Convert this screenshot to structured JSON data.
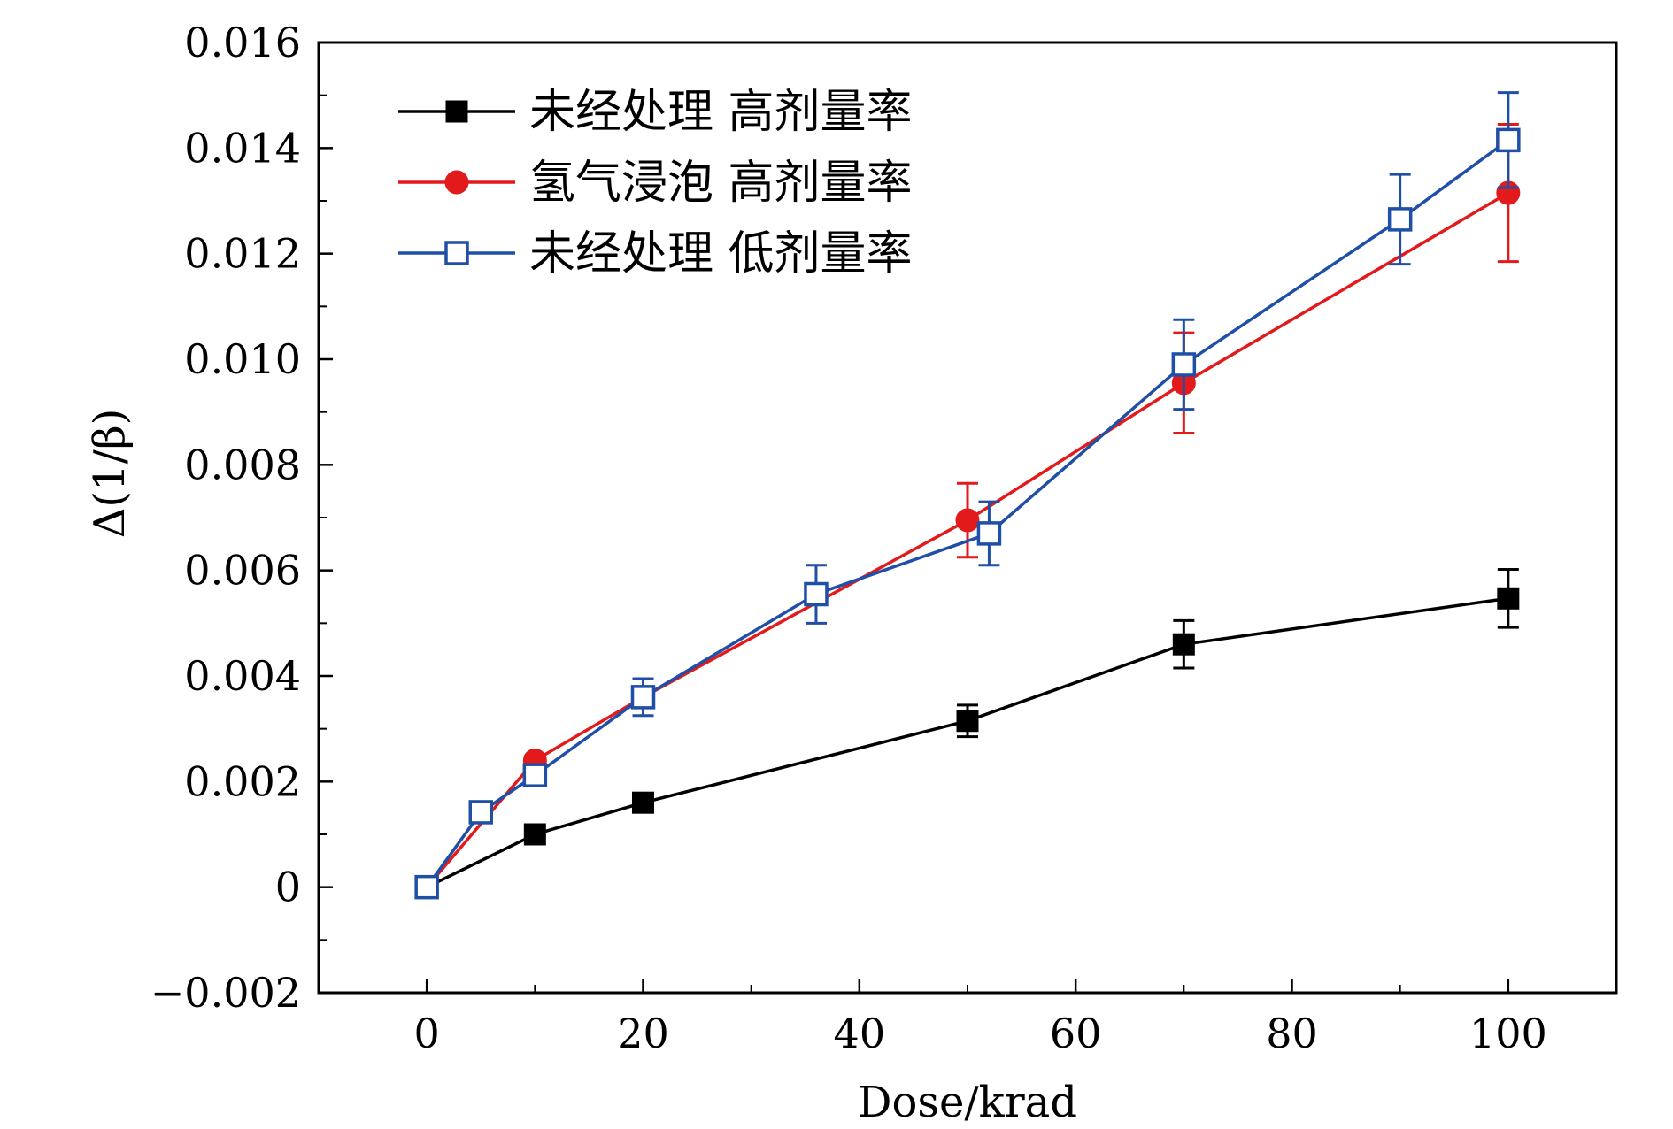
{
  "chart_data": {
    "type": "line",
    "title": "",
    "xlabel": "Dose/krad",
    "ylabel": "Δ(1/β)",
    "xlim": [
      -10,
      110
    ],
    "ylim": [
      -0.002,
      0.016
    ],
    "xticks": [
      0,
      20,
      40,
      60,
      80,
      100
    ],
    "xtick_labels": [
      "0",
      "20",
      "40",
      "60",
      "80",
      "100"
    ],
    "yticks": [
      -0.002,
      0,
      0.002,
      0.004,
      0.006,
      0.008,
      0.01,
      0.012,
      0.014,
      0.016
    ],
    "ytick_labels": [
      "−0.002",
      "0",
      "0.002",
      "0.004",
      "0.006",
      "0.008",
      "0.010",
      "0.012",
      "0.014",
      "0.016"
    ],
    "grid": false,
    "legend_position": "top-left",
    "series": [
      {
        "name": "未经处理 高剂量率",
        "color": "#000000",
        "marker": "square-filled",
        "x": [
          0,
          10,
          20,
          50,
          70,
          100
        ],
        "y": [
          0,
          0.001,
          0.0016,
          0.00315,
          0.0046,
          0.00547
        ],
        "err": [
          0,
          0,
          0,
          0.0003,
          0.00045,
          0.00055
        ]
      },
      {
        "name": "氢气浸泡 高剂量率",
        "color": "#e31a1c",
        "marker": "circle-filled",
        "x": [
          0,
          10,
          20,
          50,
          70,
          100
        ],
        "y": [
          0,
          0.0024,
          0.0036,
          0.00695,
          0.00955,
          0.01315
        ],
        "err": [
          0,
          0,
          0,
          0.0007,
          0.00095,
          0.0013
        ]
      },
      {
        "name": "未经处理 低剂量率",
        "color": "#1f4fa6",
        "marker": "square-open",
        "x": [
          0,
          5,
          10,
          20,
          36,
          52,
          70,
          90,
          100
        ],
        "y": [
          0,
          0.00142,
          0.00212,
          0.0036,
          0.00555,
          0.0067,
          0.0099,
          0.01265,
          0.01415
        ],
        "err": [
          0,
          0,
          0,
          0.00035,
          0.00055,
          0.0006,
          0.00085,
          0.00085,
          0.0009
        ]
      }
    ]
  }
}
